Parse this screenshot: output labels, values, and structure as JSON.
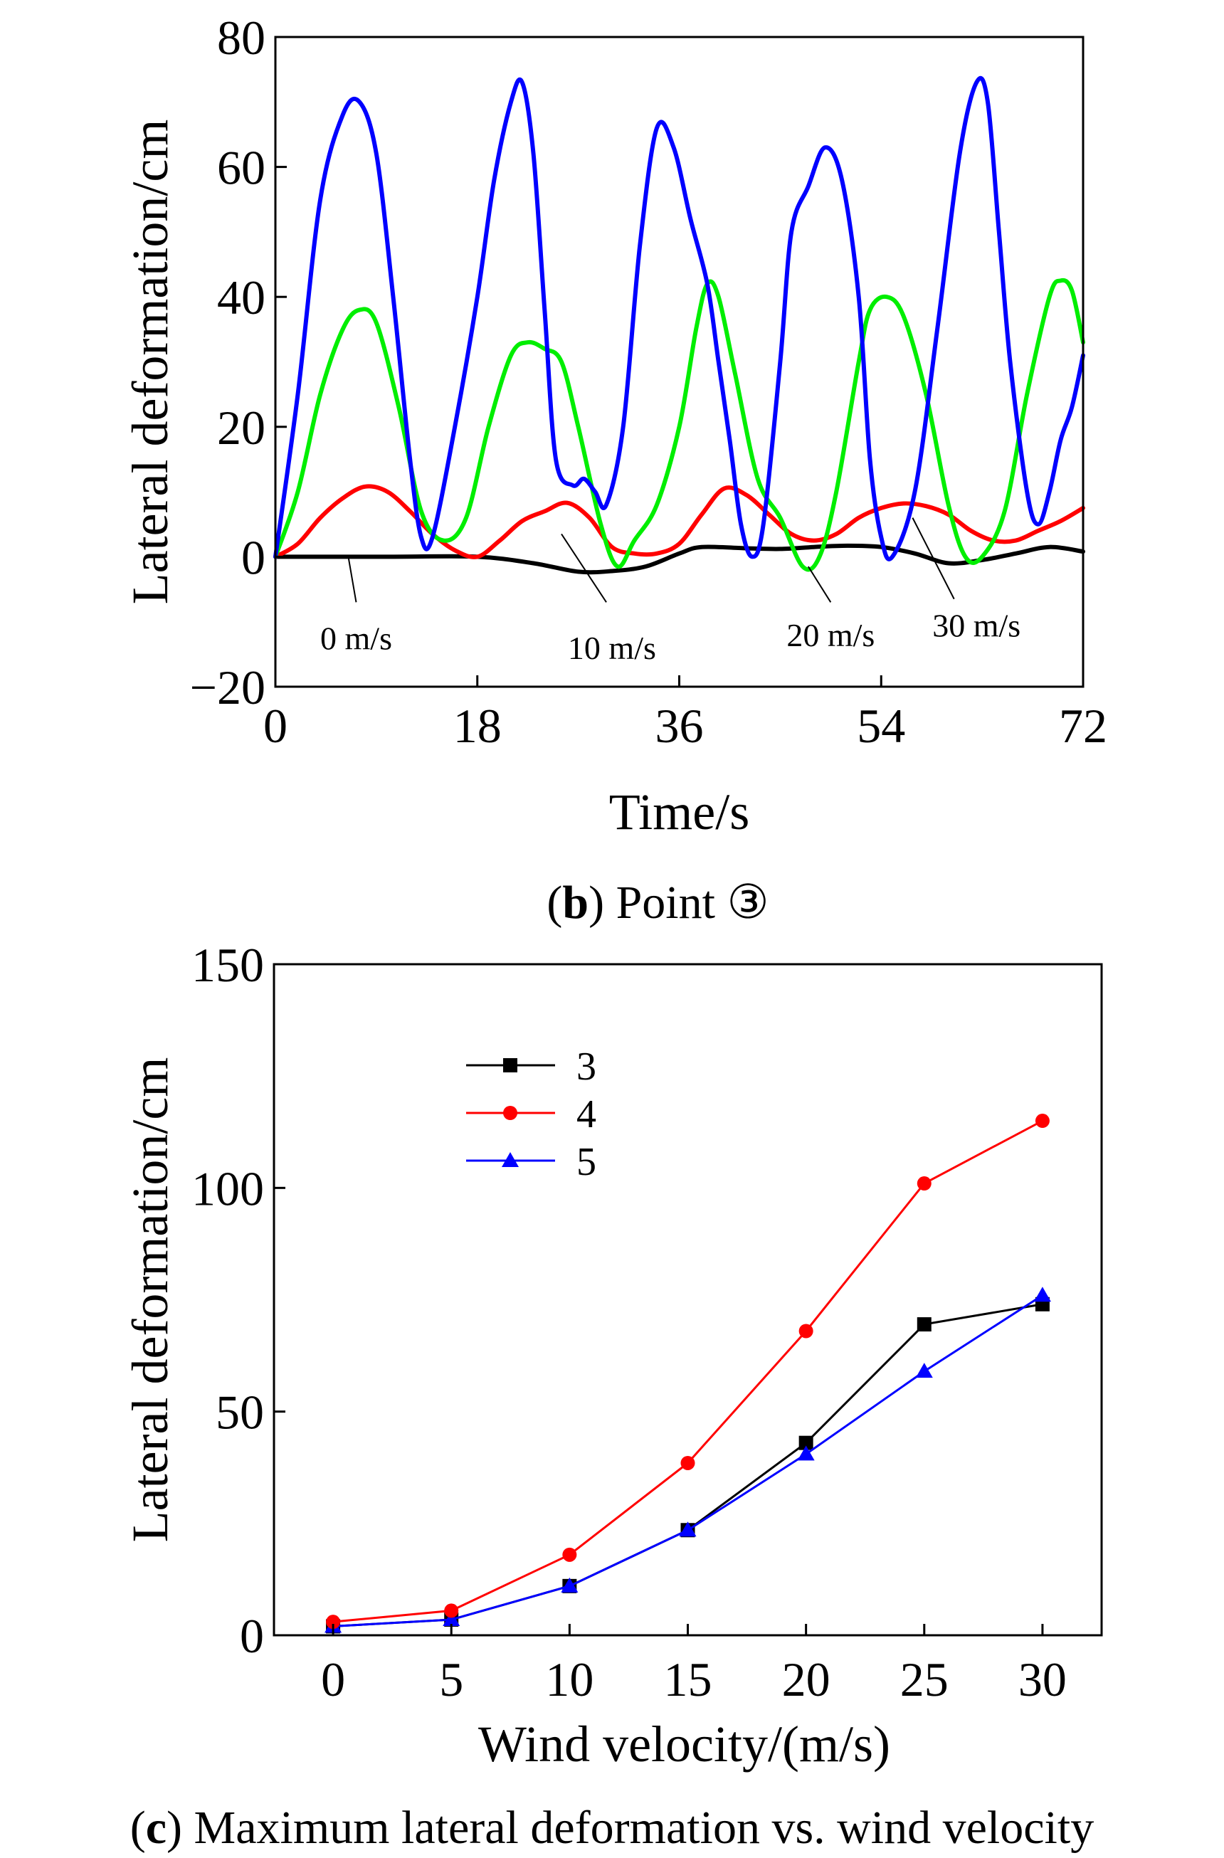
{
  "chart_data": [
    {
      "type": "line",
      "caption": {
        "open": "(",
        "letter": "b",
        "close": ")",
        "text": " Point ③"
      },
      "xlabel": "Time/s",
      "ylabel": "Lateral deformation/cm",
      "xlim": [
        0,
        72
      ],
      "ylim": [
        -20,
        80
      ],
      "xticks": [
        "0",
        "18",
        "36",
        "54",
        "72"
      ],
      "yticks": [
        "−20",
        "0",
        "20",
        "40",
        "60",
        "80"
      ],
      "grid": false,
      "series": [
        {
          "name": "0 m/s",
          "color": "#000000",
          "x": [
            0,
            10,
            18,
            23,
            27,
            30,
            33,
            36,
            38,
            42,
            45,
            48,
            51,
            54,
            57,
            60,
            63,
            66,
            69,
            72
          ],
          "y": [
            0,
            0,
            0,
            -1,
            -2.3,
            -2.2,
            -1.5,
            0.5,
            1.5,
            1.3,
            1.2,
            1.5,
            1.7,
            1.5,
            0.5,
            -1.0,
            -0.5,
            0.5,
            1.5,
            0.8
          ]
        },
        {
          "name": "10 m/s",
          "color": "#ff0000",
          "x": [
            0,
            2,
            4,
            6,
            8,
            10,
            12,
            14,
            16,
            18,
            20,
            22,
            24,
            26,
            28,
            30,
            32,
            34,
            36,
            38,
            40,
            42,
            44,
            46,
            48,
            50,
            52,
            54,
            56,
            58,
            60,
            62,
            64,
            66,
            68,
            70,
            72
          ],
          "y": [
            0,
            2,
            6,
            9,
            10.8,
            10,
            7,
            3.5,
            1,
            0,
            2.5,
            5.5,
            7,
            8.3,
            6,
            1.5,
            0.5,
            0.5,
            2,
            6.5,
            10.5,
            9.5,
            6.5,
            3.5,
            2.5,
            3.5,
            6,
            7.5,
            8.2,
            7.8,
            6.5,
            4,
            2.5,
            2.5,
            4,
            5.5,
            7.5
          ]
        },
        {
          "name": "20 m/s",
          "color": "#00ee00",
          "x": [
            0,
            2,
            4,
            6,
            7.5,
            9,
            11,
            13,
            15,
            17,
            19,
            21,
            22.5,
            24,
            25.5,
            27,
            29,
            30.5,
            32,
            34,
            36,
            37.5,
            38.5,
            39.5,
            41,
            43,
            45,
            47,
            48.5,
            50,
            52,
            53,
            54.5,
            56,
            58,
            60,
            61.5,
            63,
            65,
            67,
            69,
            70,
            71,
            72
          ],
          "y": [
            0,
            10,
            25,
            35,
            38,
            36,
            23,
            7,
            2.5,
            6,
            20,
            31,
            33,
            32,
            30,
            20,
            5,
            -1.5,
            2.5,
            8,
            20,
            35,
            42,
            40,
            28,
            12,
            6,
            -1.5,
            0,
            10,
            30,
            38,
            40,
            37,
            25,
            8,
            0,
            0,
            7,
            25,
            40,
            42.5,
            41,
            33
          ]
        },
        {
          "name": "30 m/s",
          "color": "#0000ff",
          "x": [
            0,
            2,
            4,
            6,
            7.5,
            9,
            10.5,
            12,
            13,
            14,
            16,
            18,
            19.5,
            21,
            22,
            23,
            24,
            25,
            26.5,
            27.5,
            28.5,
            29.5,
            31,
            32.5,
            34,
            35.5,
            37,
            38.5,
            39.5,
            40.5,
            41.5,
            42.5,
            43.5,
            45,
            46,
            47.5,
            49,
            50.5,
            52,
            53,
            54,
            55,
            57,
            59,
            61,
            62.5,
            63.5,
            64.5,
            65.5,
            67,
            68,
            69,
            70,
            71,
            72
          ],
          "y": [
            0,
            25,
            55,
            68,
            70,
            62,
            40,
            15,
            3,
            3,
            20,
            40,
            58,
            70,
            73,
            62,
            38,
            15,
            11,
            12,
            10,
            8,
            20,
            48,
            66,
            63,
            52,
            42,
            30,
            18,
            5,
            0,
            5,
            30,
            50,
            57,
            63,
            58,
            40,
            15,
            3,
            0,
            10,
            35,
            62,
            73,
            70,
            50,
            30,
            10,
            5,
            10,
            18,
            23,
            31
          ]
        }
      ],
      "annotations": [
        "0 m/s",
        "10 m/s",
        "20 m/s",
        "30 m/s"
      ]
    },
    {
      "type": "line",
      "caption": {
        "open": "(",
        "letter": "c",
        "close": ")",
        "text": " Maximum lateral deformation vs. wind velocity"
      },
      "xlabel": "Wind velocity/(m/s)",
      "ylabel": "Lateral deformation/cm",
      "xlim": [
        -2.5,
        32.5
      ],
      "ylim": [
        0,
        150
      ],
      "xticks": [
        "0",
        "5",
        "10",
        "15",
        "20",
        "25",
        "30"
      ],
      "yticks": [
        "0",
        "50",
        "100",
        "150"
      ],
      "grid": false,
      "legend": "top-left",
      "categories": [
        0,
        5,
        10,
        15,
        20,
        25,
        30
      ],
      "series": [
        {
          "name": "3",
          "color": "#000000",
          "marker": "square",
          "values": [
            2,
            3.5,
            11,
            23.5,
            43,
            69.5,
            74
          ]
        },
        {
          "name": "4",
          "color": "#ff0000",
          "marker": "circle",
          "values": [
            3,
            5.5,
            18,
            38.5,
            68,
            101,
            115
          ]
        },
        {
          "name": "5",
          "color": "#0000ff",
          "marker": "triangle",
          "values": [
            2,
            3.5,
            11,
            23.5,
            40.5,
            59,
            76
          ]
        }
      ]
    }
  ]
}
